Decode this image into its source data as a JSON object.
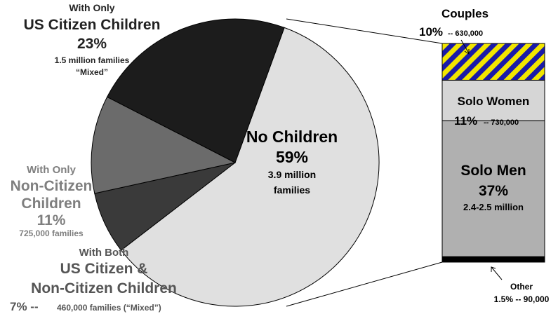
{
  "chart_data": [
    {
      "type": "pie",
      "slices": [
        {
          "key": "no_children",
          "value": 59,
          "color": "#e0e0e0"
        },
        {
          "key": "both",
          "value": 7,
          "color": "#3a3a3a"
        },
        {
          "key": "non_citizen",
          "value": 11,
          "color": "#6b6b6b"
        },
        {
          "key": "us_citizen",
          "value": 23,
          "color": "#1c1c1c"
        }
      ],
      "labels": {
        "us_citizen": {
          "line1": "With Only",
          "line2": "US Citizen Children",
          "line3": "23%",
          "line4": "1.5 million families",
          "line5": "“Mixed”"
        },
        "non_citizen": {
          "line1": "With Only",
          "line2": "Non-Citizen",
          "line3": "Children",
          "line4": "11%",
          "line5": "725,000 families"
        },
        "both": {
          "line1": "With Both",
          "line2": "US Citizen &",
          "line3": "Non-Citizen Children",
          "line4a": "7% --",
          "line4b": "460,000 families (“Mixed”)"
        },
        "no_children": {
          "line1": "No Children",
          "line2": "59%",
          "line3": "3.9 million",
          "line4": "families"
        }
      }
    },
    {
      "type": "bar",
      "stacked": true,
      "segments": [
        {
          "key": "other",
          "value": 1.5,
          "color": "#000000",
          "pattern": "solid"
        },
        {
          "key": "solo_men",
          "value": 37,
          "color": "#b0b0b0",
          "pattern": "solid"
        },
        {
          "key": "solo_women",
          "value": 11,
          "color": "#d6d6d6",
          "pattern": "solid"
        },
        {
          "key": "couples",
          "value": 10,
          "color": "#1a1aa8",
          "pattern": "stripes",
          "stripe_color": "#f2e600"
        }
      ],
      "labels": {
        "couples": {
          "name": "Couples",
          "pct": "10%",
          "detail": "-- 630,000"
        },
        "solo_women": {
          "name": "Solo Women",
          "pct": "11%",
          "detail": "-- 730,000"
        },
        "solo_men": {
          "name": "Solo Men",
          "pct": "37%",
          "detail": "2.4-2.5 million"
        },
        "other": {
          "name": "Other",
          "detail": "1.5% -- 90,000"
        }
      }
    }
  ]
}
